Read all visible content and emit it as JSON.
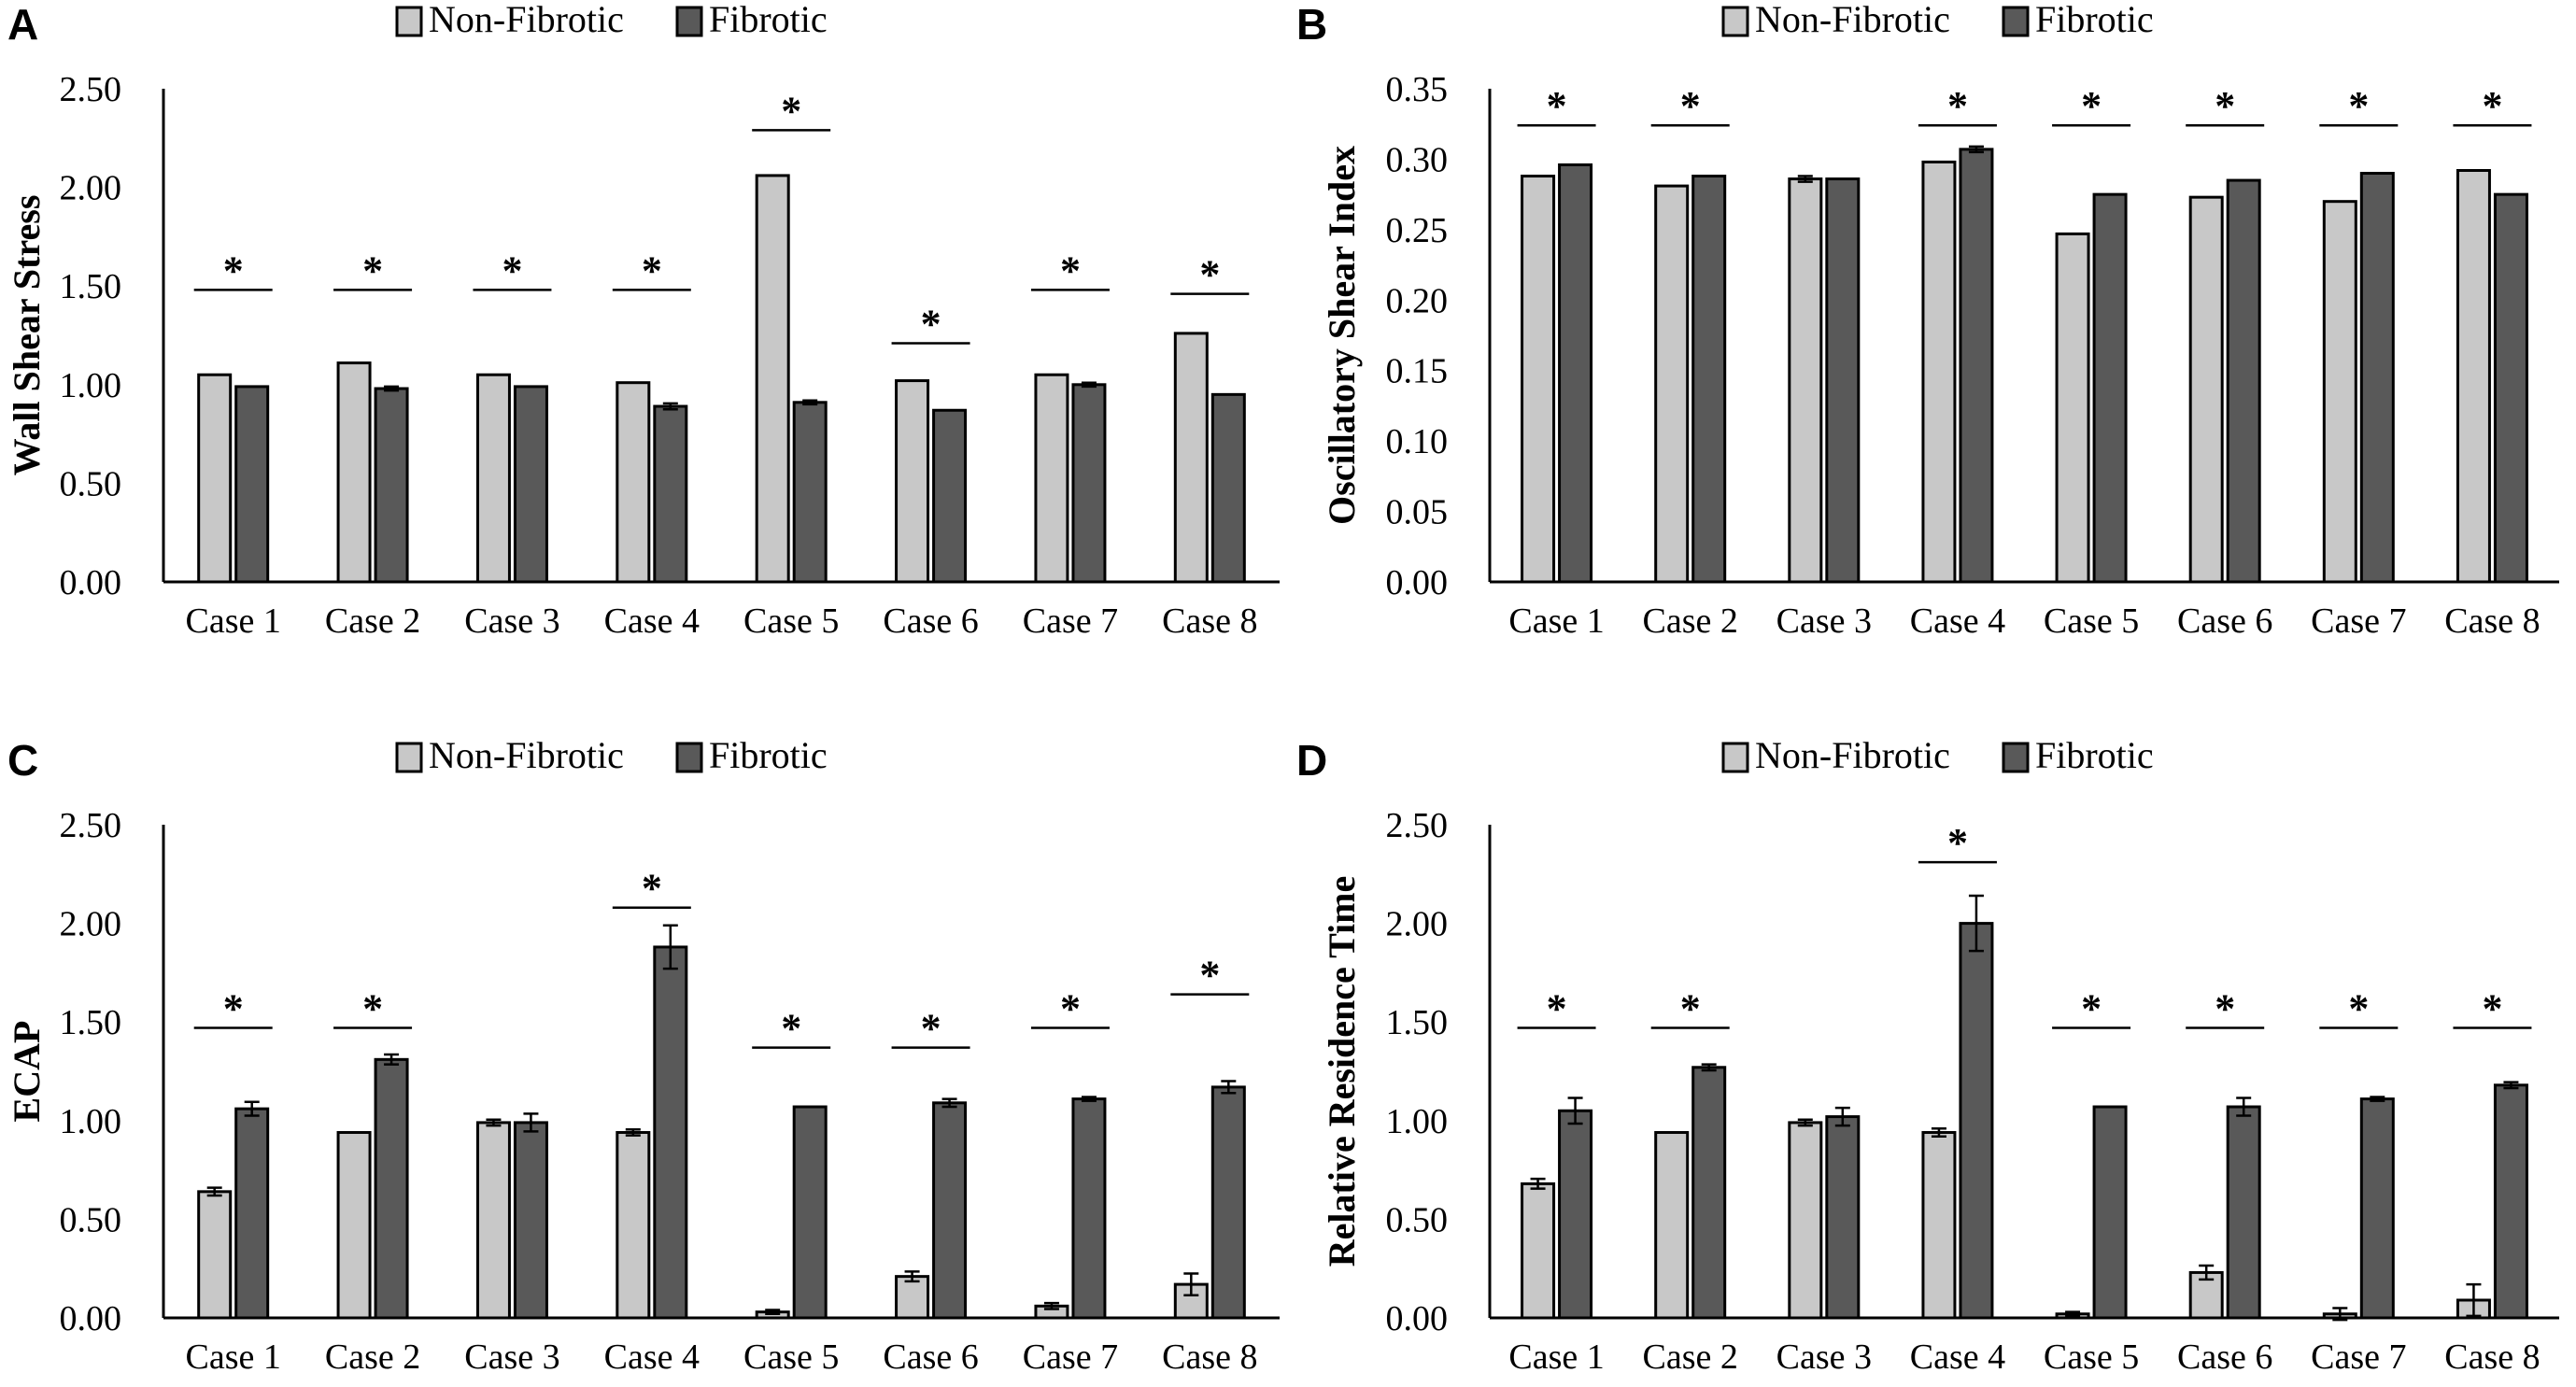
{
  "figure": {
    "legend": {
      "non_fibrotic": "Non-Fibrotic",
      "fibrotic": "Fibrotic"
    },
    "significance_marker": "*"
  },
  "colors": {
    "non_fibrotic": "#c8c8c8",
    "fibrotic": "#595959",
    "bar_edge": "#000000",
    "axis": "#000000"
  },
  "chart_data": [
    {
      "panel": "A",
      "type": "bar",
      "title": "",
      "xlabel": "",
      "ylabel": "Wall Shear Stress",
      "ylim": [
        0,
        2.5
      ],
      "yticks": [
        "0.00",
        "0.50",
        "1.00",
        "1.50",
        "2.00",
        "2.50"
      ],
      "categories": [
        "Case 1",
        "Case 2",
        "Case 3",
        "Case 4",
        "Case 5",
        "Case 6",
        "Case 7",
        "Case 8"
      ],
      "series": [
        {
          "name": "Non-Fibrotic",
          "values": [
            1.05,
            1.11,
            1.05,
            1.01,
            2.06,
            1.02,
            1.05,
            1.26
          ],
          "errors": [
            0,
            0,
            0,
            0,
            0,
            0,
            0,
            0
          ]
        },
        {
          "name": "Fibrotic",
          "values": [
            0.99,
            0.98,
            0.99,
            0.89,
            0.91,
            0.87,
            1.0,
            0.95
          ],
          "errors": [
            0,
            0.01,
            0,
            0.015,
            0.01,
            0,
            0.01,
            0
          ]
        }
      ],
      "significance": [
        true,
        true,
        true,
        true,
        true,
        true,
        true,
        true
      ],
      "sig_level": [
        1.48,
        1.48,
        1.48,
        1.48,
        2.29,
        1.21,
        1.48,
        1.46
      ]
    },
    {
      "panel": "B",
      "type": "bar",
      "title": "",
      "xlabel": "",
      "ylabel": "Oscillatory Shear Index",
      "ylim": [
        0,
        0.35
      ],
      "yticks": [
        "0.00",
        "0.05",
        "0.10",
        "0.15",
        "0.20",
        "0.25",
        "0.30",
        "0.35"
      ],
      "categories": [
        "Case 1",
        "Case 2",
        "Case 3",
        "Case 4",
        "Case 5",
        "Case 6",
        "Case 7",
        "Case 8"
      ],
      "series": [
        {
          "name": "Non-Fibrotic",
          "values": [
            0.288,
            0.281,
            0.286,
            0.298,
            0.247,
            0.273,
            0.27,
            0.292
          ],
          "errors": [
            0,
            0,
            0.002,
            0,
            0,
            0,
            0,
            0
          ]
        },
        {
          "name": "Fibrotic",
          "values": [
            0.296,
            0.288,
            0.286,
            0.307,
            0.275,
            0.285,
            0.29,
            0.275
          ],
          "errors": [
            0,
            0,
            0,
            0.002,
            0,
            0,
            0,
            0
          ]
        }
      ],
      "significance": [
        true,
        true,
        false,
        true,
        true,
        true,
        true,
        true
      ],
      "sig_level": [
        0.324,
        0.324,
        0,
        0.324,
        0.324,
        0.324,
        0.324,
        0.324
      ]
    },
    {
      "panel": "C",
      "type": "bar",
      "title": "",
      "xlabel": "",
      "ylabel": "ECAP",
      "ylim": [
        0,
        2.5
      ],
      "yticks": [
        "0.00",
        "0.50",
        "1.00",
        "1.50",
        "2.00",
        "2.50"
      ],
      "categories": [
        "Case 1",
        "Case 2",
        "Case 3",
        "Case 4",
        "Case 5",
        "Case 6",
        "Case 7",
        "Case 8"
      ],
      "series": [
        {
          "name": "Non-Fibrotic",
          "values": [
            0.64,
            0.94,
            0.99,
            0.94,
            0.03,
            0.21,
            0.06,
            0.17
          ],
          "errors": [
            0.02,
            0,
            0.015,
            0.015,
            0.01,
            0.025,
            0.015,
            0.055
          ]
        },
        {
          "name": "Fibrotic",
          "values": [
            1.06,
            1.31,
            0.99,
            1.88,
            1.07,
            1.09,
            1.11,
            1.17
          ],
          "errors": [
            0.035,
            0.025,
            0.045,
            0.11,
            0,
            0.02,
            0.01,
            0.03
          ]
        }
      ],
      "significance": [
        true,
        true,
        false,
        true,
        true,
        true,
        true,
        true
      ],
      "sig_level": [
        1.47,
        1.47,
        0,
        2.08,
        1.37,
        1.37,
        1.47,
        1.64
      ]
    },
    {
      "panel": "D",
      "type": "bar",
      "title": "",
      "xlabel": "",
      "ylabel": "Relative Residence Time",
      "ylim": [
        0,
        2.5
      ],
      "yticks": [
        "0.00",
        "0.50",
        "1.00",
        "1.50",
        "2.00",
        "2.50"
      ],
      "categories": [
        "Case 1",
        "Case 2",
        "Case 3",
        "Case 4",
        "Case 5",
        "Case 6",
        "Case 7",
        "Case 8"
      ],
      "series": [
        {
          "name": "Non-Fibrotic",
          "values": [
            0.68,
            0.94,
            0.99,
            0.94,
            0.02,
            0.23,
            0.02,
            0.09
          ],
          "errors": [
            0.025,
            0,
            0.015,
            0.02,
            0.01,
            0.035,
            0.03,
            0.08
          ]
        },
        {
          "name": "Fibrotic",
          "values": [
            1.05,
            1.27,
            1.02,
            2.0,
            1.07,
            1.07,
            1.11,
            1.18
          ],
          "errors": [
            0.065,
            0.015,
            0.045,
            0.14,
            0,
            0.045,
            0.01,
            0.015
          ]
        }
      ],
      "significance": [
        true,
        true,
        false,
        true,
        true,
        true,
        true,
        true
      ],
      "sig_level": [
        1.47,
        1.47,
        0,
        2.31,
        1.47,
        1.47,
        1.47,
        1.47
      ]
    }
  ]
}
